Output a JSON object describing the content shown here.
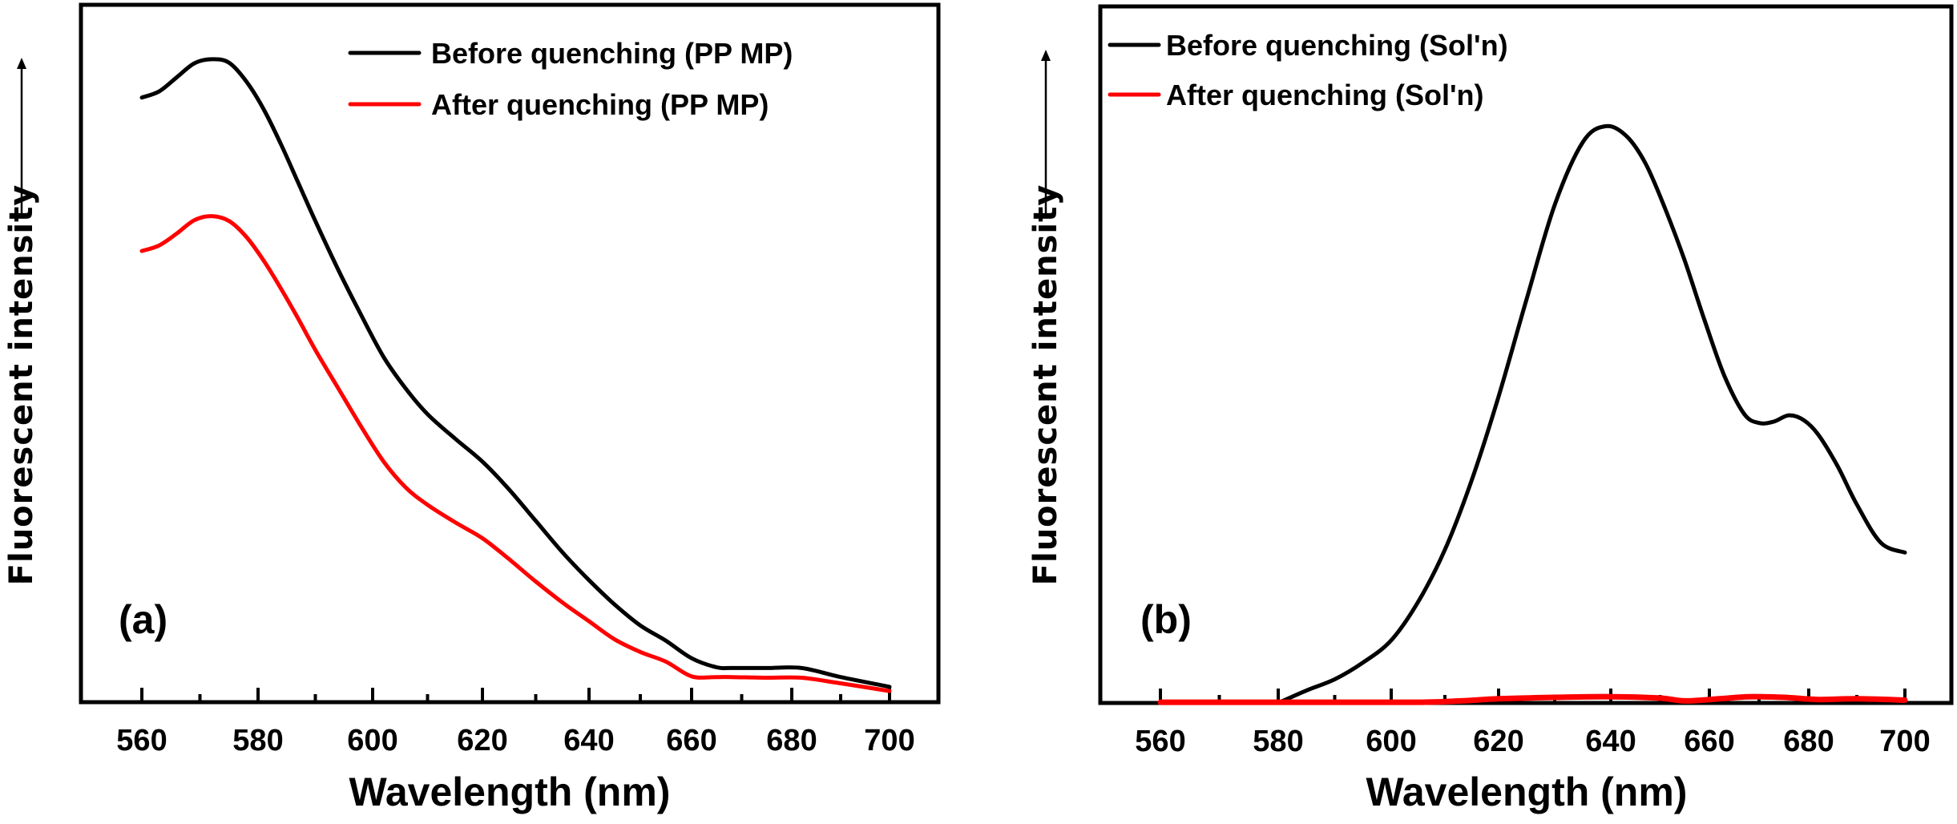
{
  "chart_data": [
    {
      "type": "line",
      "panel_label": "(a)",
      "xlabel": "Wavelength (nm)",
      "ylabel": "Fluorescent intensity",
      "ylabel_arrow": true,
      "x_ticks": [
        560,
        580,
        600,
        620,
        640,
        660,
        680,
        700
      ],
      "x_minor_ticks": [
        570,
        590,
        610,
        630,
        650,
        670,
        690
      ],
      "xlim": [
        549,
        713
      ],
      "ylim": [
        0,
        100
      ],
      "y_units": "arbitrary (no tick labels)",
      "grid": false,
      "legend_position": "top-right",
      "series": [
        {
          "name": "Before quenching (PP MP)",
          "color": "#000000",
          "x": [
            560,
            563,
            566,
            569,
            572,
            575,
            578,
            581,
            584,
            587,
            590,
            594,
            598,
            602,
            606,
            610,
            615,
            620,
            625,
            630,
            635,
            640,
            645,
            650,
            655,
            660,
            665,
            668,
            675,
            682,
            690,
            700
          ],
          "y": [
            86.7,
            87.6,
            89.6,
            91.6,
            92.2,
            91.7,
            89.0,
            85.0,
            80.0,
            74.5,
            69.0,
            62.0,
            55.5,
            49.5,
            45.0,
            41.3,
            37.8,
            34.5,
            30.5,
            26.0,
            21.5,
            17.5,
            14.0,
            11.0,
            8.8,
            6.3,
            5.0,
            4.9,
            4.9,
            4.9,
            3.6,
            2.2
          ]
        },
        {
          "name": "After quenching (PP MP)",
          "color": "#ff0000",
          "x": [
            560,
            563,
            566,
            569,
            572,
            575,
            578,
            581,
            584,
            587,
            590,
            594,
            598,
            602,
            606,
            610,
            615,
            620,
            625,
            630,
            635,
            640,
            645,
            650,
            655,
            660,
            665,
            668,
            675,
            682,
            690,
            700
          ],
          "y": [
            64.7,
            65.5,
            67.2,
            69.1,
            69.7,
            69.0,
            66.7,
            63.3,
            59.3,
            55.0,
            50.5,
            45.0,
            39.5,
            34.5,
            30.8,
            28.3,
            25.8,
            23.5,
            20.5,
            17.3,
            14.3,
            11.6,
            9.0,
            7.2,
            5.8,
            3.7,
            3.6,
            3.6,
            3.5,
            3.5,
            2.7,
            1.6
          ]
        }
      ]
    },
    {
      "type": "line",
      "panel_label": "(b)",
      "xlabel": "Wavelength (nm)",
      "ylabel": "Fluorescent intensity",
      "ylabel_arrow": true,
      "x_ticks": [
        560,
        580,
        600,
        620,
        640,
        660,
        680,
        700
      ],
      "x_minor_ticks": [
        570,
        590,
        610,
        630,
        650,
        670,
        690
      ],
      "xlim": [
        548,
        710
      ],
      "ylim": [
        0,
        100
      ],
      "y_units": "arbitrary (no tick labels)",
      "grid": false,
      "legend_position": "top-left",
      "series": [
        {
          "name": "Before quenching (Sol'n)",
          "color": "#000000",
          "x": [
            580,
            585,
            590,
            595,
            600,
            605,
            610,
            615,
            620,
            625,
            630,
            635,
            639,
            643,
            647,
            651,
            655,
            659,
            663,
            667,
            670,
            673,
            676,
            679,
            682,
            686,
            690,
            695,
            700
          ],
          "y": [
            0.0,
            1.8,
            3.4,
            5.8,
            9.0,
            14.5,
            22.0,
            32.0,
            44.0,
            58.0,
            71.5,
            80.5,
            82.8,
            81.5,
            77.5,
            71.0,
            63.5,
            55.0,
            47.0,
            41.5,
            40.2,
            40.4,
            41.3,
            40.6,
            38.5,
            34.0,
            28.5,
            23.0,
            21.6
          ]
        },
        {
          "name": "After quenching (Sol'n)",
          "color": "#ff0000",
          "x": [
            560,
            575,
            590,
            605,
            613,
            620,
            630,
            640,
            650,
            655,
            662,
            668,
            675,
            682,
            690,
            700
          ],
          "y": [
            0.1,
            0.1,
            0.1,
            0.1,
            0.3,
            0.6,
            0.8,
            0.9,
            0.7,
            0.3,
            0.6,
            0.9,
            0.8,
            0.5,
            0.6,
            0.4
          ]
        }
      ]
    }
  ]
}
